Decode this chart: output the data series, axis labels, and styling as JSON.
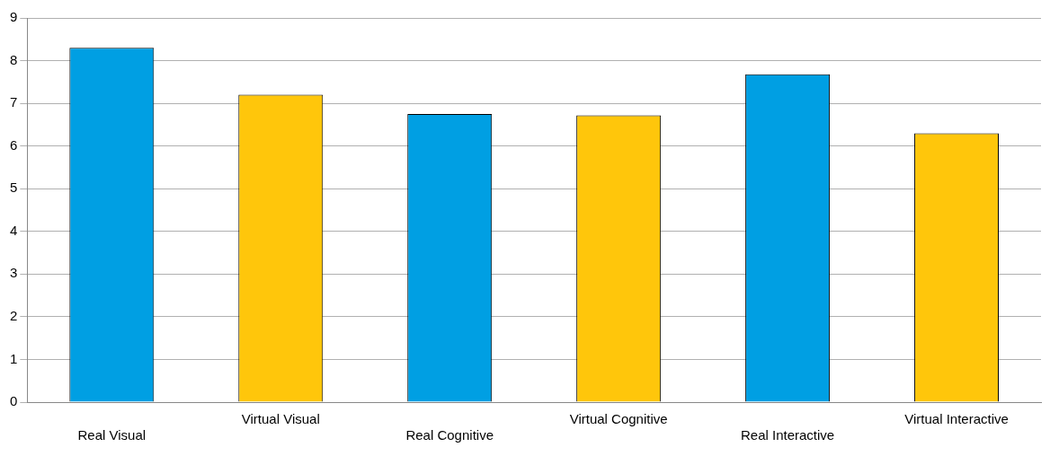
{
  "chart_data": {
    "type": "bar",
    "categories": [
      "Real Visual",
      "Virtual Visual",
      "Real Cognitive",
      "Virtual Cognitive",
      "Real Interactive",
      "Virtual Interactive"
    ],
    "values": [
      8.3,
      7.2,
      6.75,
      6.72,
      7.68,
      6.3
    ],
    "colors": [
      "#009fe3",
      "#ffc60b",
      "#009fe3",
      "#ffc60b",
      "#009fe3",
      "#ffc60b"
    ],
    "ylim": [
      0,
      9
    ],
    "yticks": [
      0,
      1,
      2,
      3,
      4,
      5,
      6,
      7,
      8,
      9
    ],
    "grid": "y",
    "legend": false
  }
}
